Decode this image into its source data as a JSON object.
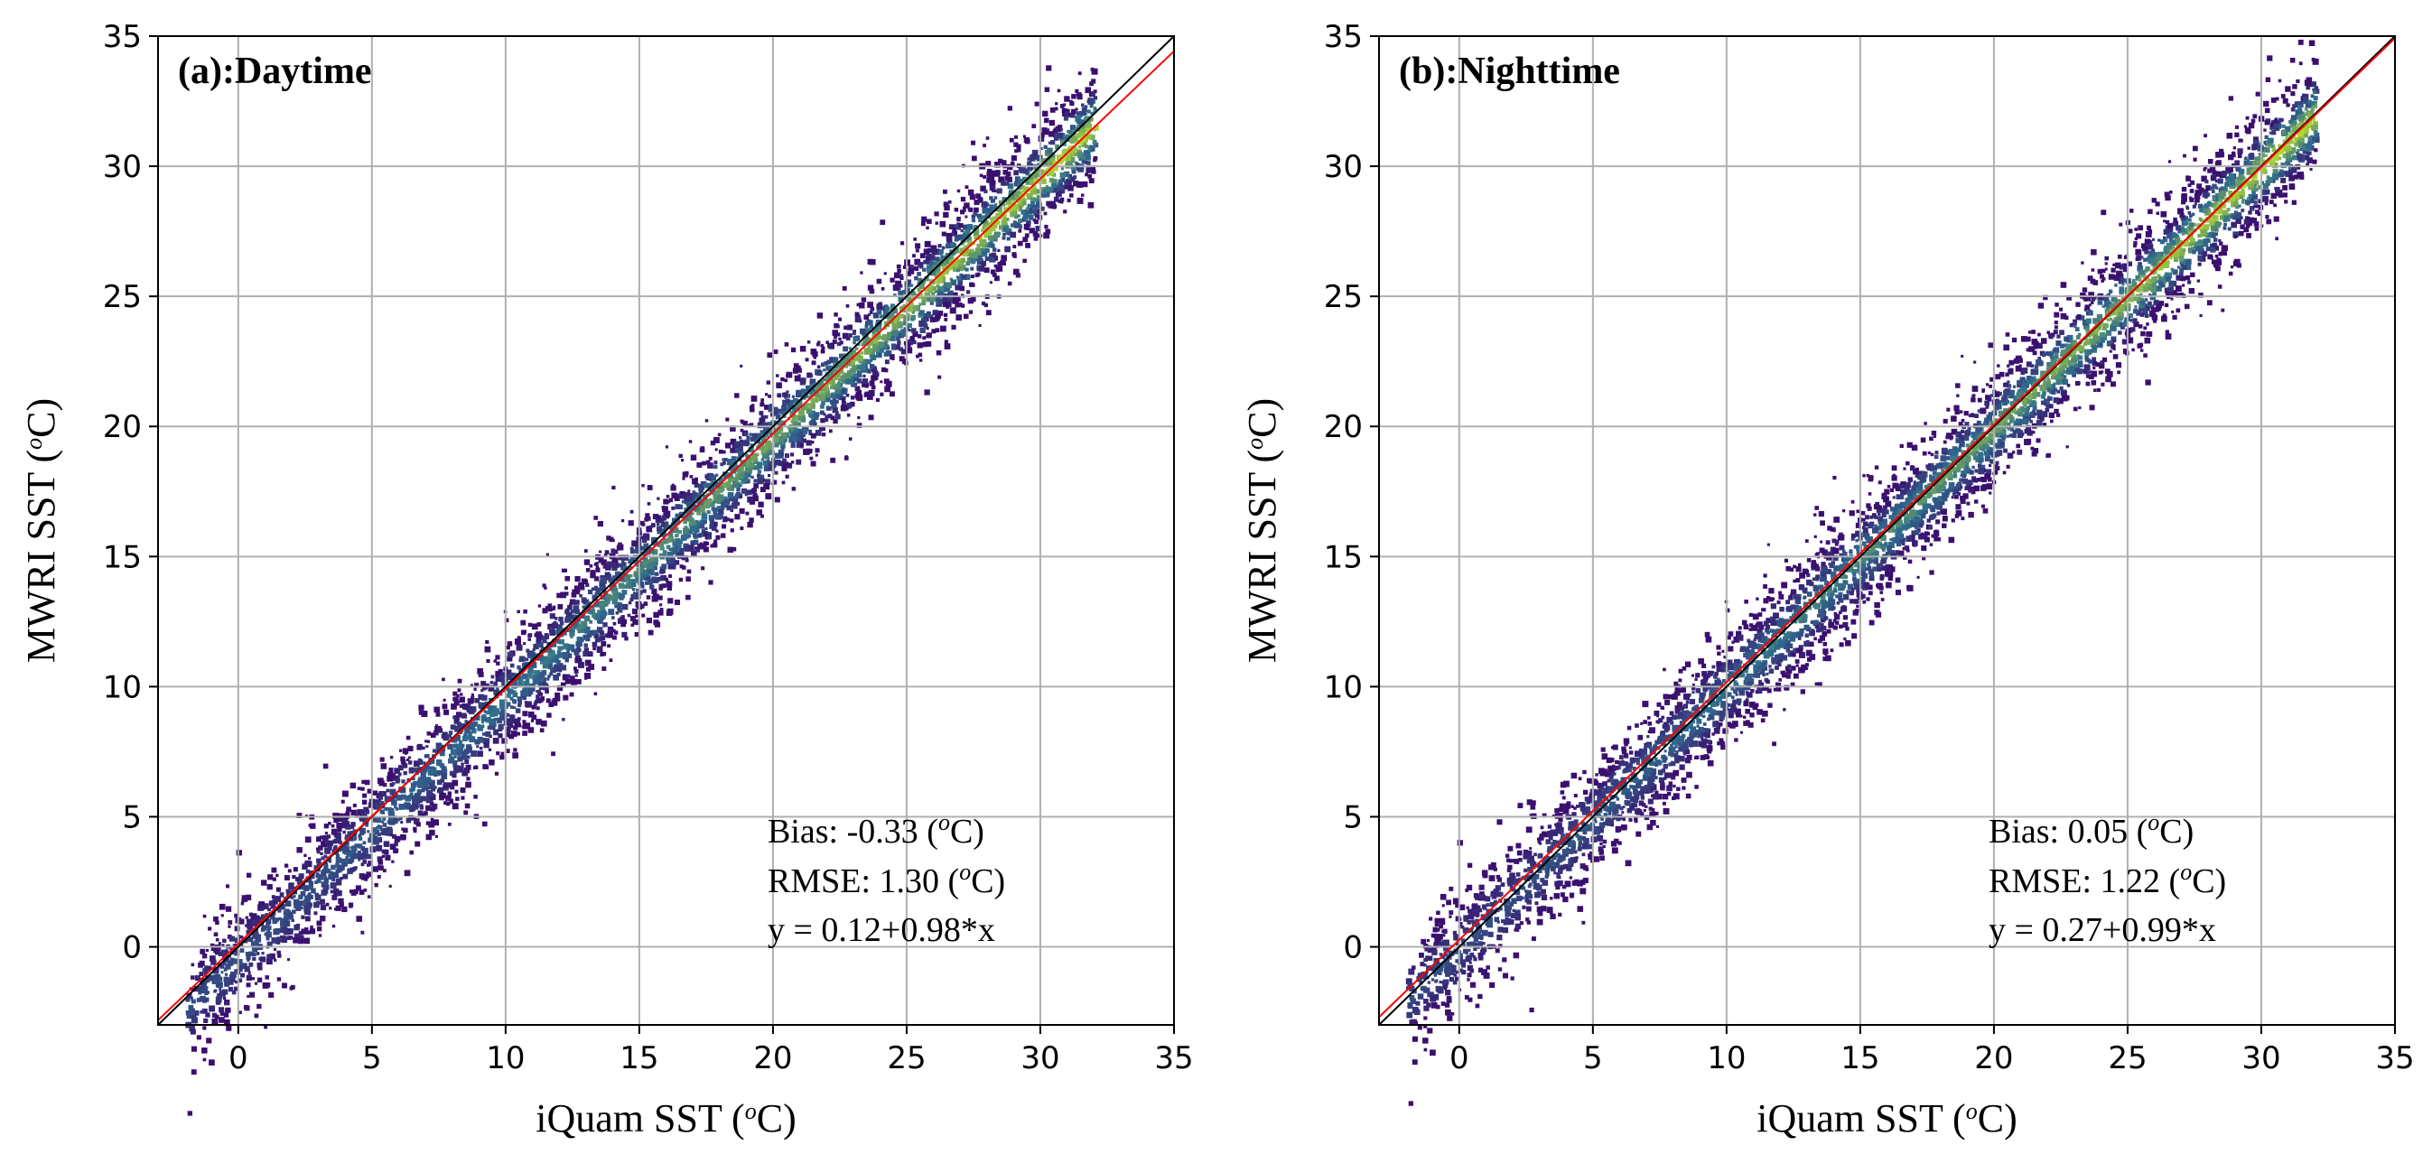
{
  "chart_data": [
    {
      "type": "heatmap-scatter",
      "title": "(a):Daytime",
      "xlabel_main": "iQuam SST (",
      "xlabel_sup": "o",
      "xlabel_tail": "C)",
      "ylabel_main": "MWRI SST (",
      "ylabel_sup": "o",
      "ylabel_tail": "C)",
      "xlim": [
        -3,
        35
      ],
      "ylim": [
        -3,
        35
      ],
      "xticks": [
        0,
        5,
        10,
        15,
        20,
        25,
        30,
        35
      ],
      "yticks": [
        0,
        5,
        10,
        15,
        20,
        25,
        30,
        35
      ],
      "grid": true,
      "density_x_range": [
        -2,
        32
      ],
      "bias": -0.33,
      "stats": {
        "bias_pre": "Bias: -0.33 (",
        "bias_post": "C)",
        "rmse_pre": "RMSE: 1.30 (",
        "rmse_post": "C)",
        "sup": "o",
        "fit": "y = 0.12+0.98*x"
      },
      "lines": [
        {
          "name": "1:1 line",
          "color": "#000000",
          "intercept": 0,
          "slope": 1
        },
        {
          "name": "fit",
          "color": "#ff0000",
          "intercept": 0.12,
          "slope": 0.98
        }
      ]
    },
    {
      "type": "heatmap-scatter",
      "title": "(b):Nighttime",
      "xlabel_main": "iQuam SST (",
      "xlabel_sup": "o",
      "xlabel_tail": "C)",
      "ylabel_main": "MWRI SST (",
      "ylabel_sup": "o",
      "ylabel_tail": "C)",
      "xlim": [
        -3,
        35
      ],
      "ylim": [
        -3,
        35
      ],
      "xticks": [
        0,
        5,
        10,
        15,
        20,
        25,
        30,
        35
      ],
      "yticks": [
        0,
        5,
        10,
        15,
        20,
        25,
        30,
        35
      ],
      "grid": true,
      "density_x_range": [
        -2,
        32
      ],
      "bias": 0.05,
      "stats": {
        "bias_pre": "Bias: 0.05 (",
        "bias_post": "C)",
        "rmse_pre": "RMSE: 1.22 (",
        "rmse_post": "C)",
        "sup": "o",
        "fit": "y = 0.27+0.99*x"
      },
      "lines": [
        {
          "name": "1:1 line",
          "color": "#000000",
          "intercept": 0,
          "slope": 1
        },
        {
          "name": "fit",
          "color": "#ff0000",
          "intercept": 0.27,
          "slope": 0.99
        }
      ]
    }
  ],
  "colors": {
    "low": "#3b0f6f",
    "mid": "#2f6e8e",
    "high": "#b8de29",
    "grid": "#b0b0b0",
    "axis": "#000000"
  }
}
